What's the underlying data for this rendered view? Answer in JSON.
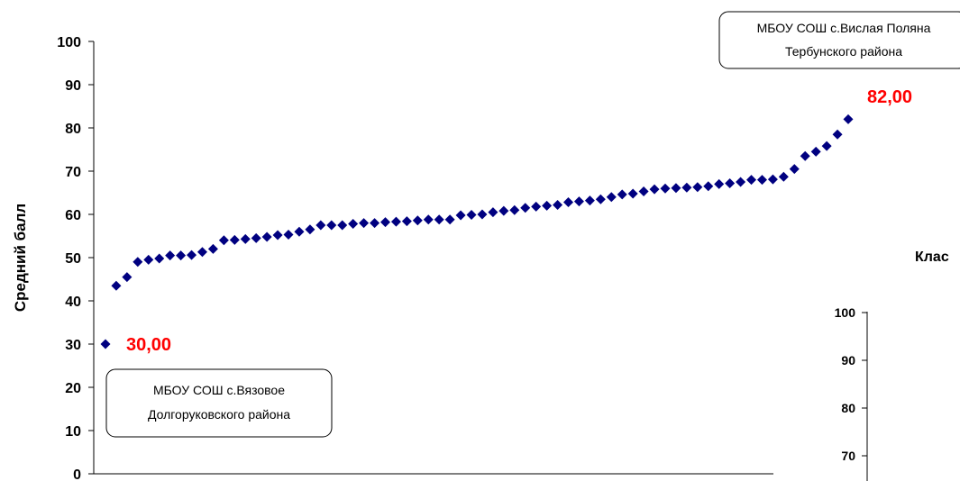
{
  "chart_data": {
    "type": "scatter",
    "ylabel": "Средний балл",
    "ylim": [
      0,
      100
    ],
    "yticks": [
      0,
      10,
      20,
      30,
      40,
      50,
      60,
      70,
      80,
      90,
      100
    ],
    "marker_color": "#000080",
    "values": [
      30.0,
      43.5,
      45.5,
      49.0,
      49.5,
      49.8,
      50.5,
      50.5,
      50.6,
      51.3,
      52.0,
      54.0,
      54.1,
      54.3,
      54.5,
      54.8,
      55.2,
      55.3,
      56.0,
      56.5,
      57.5,
      57.5,
      57.5,
      57.8,
      58.0,
      58.0,
      58.2,
      58.3,
      58.4,
      58.6,
      58.8,
      58.8,
      58.8,
      59.8,
      59.9,
      60.0,
      60.5,
      60.8,
      61.0,
      61.5,
      61.8,
      62.0,
      62.2,
      62.8,
      63.0,
      63.2,
      63.5,
      64.0,
      64.6,
      64.8,
      65.3,
      65.8,
      66.0,
      66.1,
      66.2,
      66.3,
      66.5,
      67.0,
      67.2,
      67.5,
      68.0,
      68.0,
      68.1,
      68.7,
      70.5,
      73.5,
      74.5,
      75.8,
      78.5,
      82.0
    ],
    "data_labels": [
      {
        "index": 0,
        "text": "30,00"
      },
      {
        "index": 69,
        "text": "82,00"
      }
    ],
    "annotations": [
      {
        "lines": [
          "МБОУ СОШ с.Вязовое",
          "Долгоруковского района"
        ]
      },
      {
        "lines": [
          "МБОУ СОШ с.Вислая Поляна",
          "Тербунского района"
        ]
      }
    ]
  },
  "second_chart": {
    "title": "Клас",
    "yticks": [
      70,
      80,
      90,
      100
    ]
  }
}
